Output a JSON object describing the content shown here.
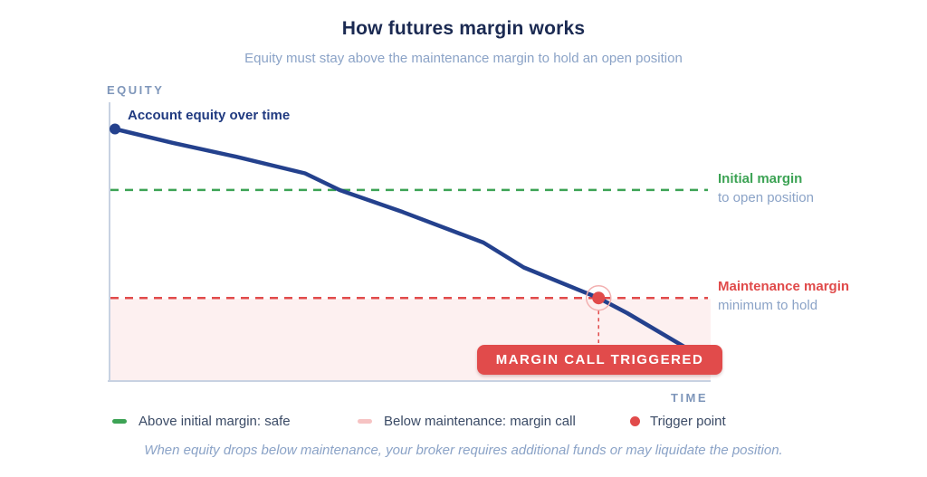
{
  "header": {
    "title": "How futures margin works",
    "subtitle": "Equity must stay above the maintenance margin to hold an open position"
  },
  "colors": {
    "equity_line": "#24418d",
    "initial_margin": "#3da355",
    "maintenance_margin": "#e14b4b",
    "below_maintenance_fill": "#fdf0f0",
    "pink_swatch": "#f6c3c3",
    "muted_text": "#8ba3c7",
    "axis_line": "#c8d2e2",
    "badge_bg": "#e14b4b"
  },
  "chart_data": {
    "type": "line",
    "title": "How futures margin works",
    "xlabel": "TIME",
    "ylabel": "EQUITY",
    "xlim": [
      0,
      10
    ],
    "ylim": [
      0,
      100
    ],
    "grid": false,
    "legend_position": "bottom",
    "series": [
      {
        "name": "Account equity over time",
        "x": [
          0,
          1.0,
          2.1,
          3.3,
          3.9,
          5.0,
          6.4,
          7.1,
          8.4,
          8.9,
          10
        ],
        "y": [
          91,
          86,
          81,
          75,
          69,
          61,
          50,
          41,
          30,
          24.5,
          11
        ]
      }
    ],
    "reference_lines": [
      {
        "label": "Initial margin",
        "sublabel": "to open position",
        "value": 69,
        "color": "#3da355",
        "style": "dashed"
      },
      {
        "label": "Maintenance margin",
        "sublabel": "minimum to hold",
        "value": 30,
        "color": "#e14b4b",
        "style": "dashed"
      }
    ],
    "regions": [
      {
        "label": "Below maintenance: margin call",
        "from": 0,
        "to": 30,
        "fill": "#fdf0f0"
      }
    ],
    "trigger_index": 8,
    "annotation_badge": "MARGIN CALL TRIGGERED"
  },
  "labels": {
    "y_axis": "EQUITY",
    "x_axis": "TIME",
    "series": "Account equity over time",
    "initial_margin": "Initial margin",
    "initial_margin_sub": "to open position",
    "maintenance_margin": "Maintenance margin",
    "maintenance_margin_sub": "minimum to hold",
    "badge": "MARGIN CALL TRIGGERED"
  },
  "legend": {
    "items": [
      {
        "label": "Above initial margin: safe",
        "swatch": "green-line"
      },
      {
        "label": "Below maintenance: margin call",
        "swatch": "pink-line"
      },
      {
        "label": "Trigger point",
        "swatch": "red-dot"
      }
    ]
  },
  "footer": {
    "note": "When equity drops below maintenance, your broker requires additional funds or may liquidate the position."
  }
}
